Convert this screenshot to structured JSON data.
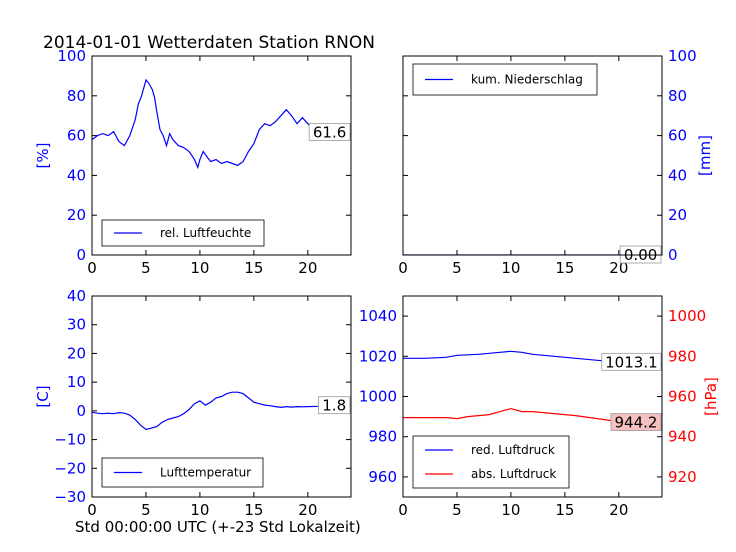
{
  "title": "2014-01-01 Wetterdaten Station RNON",
  "xlabel": "Std 00:00:00 UTC (+-23 Std Lokalzeit)",
  "chart_data": [
    {
      "type": "line",
      "name": "humidity",
      "xlim": [
        0,
        24
      ],
      "xticks": [
        0,
        5,
        10,
        15,
        20
      ],
      "ylim": [
        0,
        100
      ],
      "yticks": [
        0,
        20,
        40,
        60,
        80,
        100
      ],
      "ylabel": "[%]",
      "ylabel_side": "left",
      "ytick_color": "#0000ff",
      "legend": "lower-left",
      "series": [
        {
          "name": "rel. Luftfeuchte",
          "color": "#0000ff",
          "points": [
            [
              0,
              58
            ],
            [
              0.5,
              60
            ],
            [
              1,
              61
            ],
            [
              1.5,
              60
            ],
            [
              2,
              62
            ],
            [
              2.5,
              57
            ],
            [
              3,
              55
            ],
            [
              3.5,
              60
            ],
            [
              4,
              68
            ],
            [
              4.3,
              76
            ],
            [
              4.6,
              80
            ],
            [
              5,
              88
            ],
            [
              5.3,
              86
            ],
            [
              5.6,
              83
            ],
            [
              5.8,
              79
            ],
            [
              6,
              72
            ],
            [
              6.3,
              63
            ],
            [
              6.6,
              60
            ],
            [
              6.9,
              55
            ],
            [
              7.2,
              61
            ],
            [
              7.5,
              58
            ],
            [
              8,
              55
            ],
            [
              8.5,
              54
            ],
            [
              9,
              52
            ],
            [
              9.5,
              48
            ],
            [
              9.8,
              44
            ],
            [
              10,
              48
            ],
            [
              10.3,
              52
            ],
            [
              10.7,
              49
            ],
            [
              11,
              47
            ],
            [
              11.5,
              48
            ],
            [
              12,
              46
            ],
            [
              12.5,
              47
            ],
            [
              13,
              46
            ],
            [
              13.5,
              45
            ],
            [
              14,
              47
            ],
            [
              14.5,
              52
            ],
            [
              15,
              56
            ],
            [
              15.5,
              63
            ],
            [
              16,
              66
            ],
            [
              16.5,
              65
            ],
            [
              17,
              67
            ],
            [
              17.5,
              70
            ],
            [
              18,
              73
            ],
            [
              18.5,
              70
            ],
            [
              19,
              66
            ],
            [
              19.5,
              69
            ],
            [
              20,
              66
            ],
            [
              20.5,
              63
            ],
            [
              21,
              62
            ],
            [
              21.5,
              60
            ],
            [
              22,
              63
            ],
            [
              22.5,
              61
            ],
            [
              23,
              60
            ],
            [
              23.5,
              61
            ],
            [
              24,
              61
            ]
          ]
        }
      ],
      "value_label": "61.6",
      "value_label_y": 61.6
    },
    {
      "type": "line",
      "name": "precipitation",
      "xlim": [
        0,
        24
      ],
      "xticks": [
        0,
        5,
        10,
        15,
        20
      ],
      "ylim": [
        0,
        100
      ],
      "yticks": [
        0,
        20,
        40,
        60,
        80,
        100
      ],
      "ylabel": "[mm]",
      "ylabel_side": "right",
      "ytick_color": "#0000ff",
      "legend": "upper-left",
      "series": [
        {
          "name": "kum. Niederschlag",
          "color": "#0000ff",
          "points": [
            [
              0,
              0
            ],
            [
              24,
              0
            ]
          ]
        }
      ],
      "value_label": "0.00",
      "value_label_y": 0
    },
    {
      "type": "line",
      "name": "temperature",
      "xlim": [
        0,
        24
      ],
      "xticks": [
        0,
        5,
        10,
        15,
        20
      ],
      "ylim": [
        -30,
        40
      ],
      "yticks": [
        -30,
        -20,
        -10,
        0,
        10,
        20,
        30,
        40
      ],
      "ytick_labels": [
        "−30",
        "−20",
        "−10",
        "0",
        "10",
        "20",
        "30",
        "40"
      ],
      "ylabel": "[C]",
      "ylabel_side": "left",
      "ytick_color": "#0000ff",
      "legend": "lower-left",
      "series": [
        {
          "name": "Lufttemperatur",
          "color": "#0000ff",
          "points": [
            [
              0,
              -0.5
            ],
            [
              0.5,
              -0.8
            ],
            [
              1,
              -1
            ],
            [
              1.5,
              -0.8
            ],
            [
              2,
              -1
            ],
            [
              2.5,
              -0.6
            ],
            [
              3,
              -0.8
            ],
            [
              3.5,
              -1.5
            ],
            [
              4,
              -3
            ],
            [
              4.5,
              -5
            ],
            [
              5,
              -6.5
            ],
            [
              5.5,
              -6
            ],
            [
              6,
              -5.5
            ],
            [
              6.5,
              -4
            ],
            [
              7,
              -3
            ],
            [
              7.5,
              -2.5
            ],
            [
              8,
              -2
            ],
            [
              8.5,
              -1
            ],
            [
              9,
              0.5
            ],
            [
              9.5,
              2.5
            ],
            [
              10,
              3.5
            ],
            [
              10.5,
              2
            ],
            [
              11,
              3
            ],
            [
              11.5,
              4.5
            ],
            [
              12,
              5
            ],
            [
              12.5,
              6
            ],
            [
              13,
              6.5
            ],
            [
              13.5,
              6.5
            ],
            [
              14,
              6
            ],
            [
              14.5,
              4.5
            ],
            [
              15,
              3
            ],
            [
              15.5,
              2.5
            ],
            [
              16,
              2
            ],
            [
              16.5,
              1.8
            ],
            [
              17,
              1.5
            ],
            [
              17.5,
              1.2
            ],
            [
              18,
              1.5
            ],
            [
              18.5,
              1.3
            ],
            [
              19,
              1.5
            ],
            [
              19.5,
              1.4
            ],
            [
              20,
              1.5
            ],
            [
              21,
              1.6
            ],
            [
              22,
              1.8
            ],
            [
              23,
              1.7
            ],
            [
              24,
              1.8
            ]
          ]
        }
      ],
      "value_label": "1.8",
      "value_label_y": 1.8
    },
    {
      "type": "line",
      "name": "pressure",
      "xlim": [
        0,
        24
      ],
      "xticks": [
        0,
        5,
        10,
        15,
        20
      ],
      "ylim": [
        950,
        1050
      ],
      "yticks": [
        960,
        980,
        1000,
        1020,
        1040
      ],
      "ytick_color": "#0000ff",
      "y2lim": [
        910,
        1010
      ],
      "y2ticks": [
        920,
        940,
        960,
        980,
        1000
      ],
      "y2tick_color": "#ff0000",
      "y2label": "[hPa]",
      "legend": "lower-left",
      "series": [
        {
          "name": "red. Luftdruck",
          "color": "#0000ff",
          "axis": "left",
          "points": [
            [
              0,
              1019
            ],
            [
              2,
              1019
            ],
            [
              4,
              1019.5
            ],
            [
              5,
              1020.5
            ],
            [
              7,
              1021
            ],
            [
              9,
              1022
            ],
            [
              10,
              1022.5
            ],
            [
              11,
              1022
            ],
            [
              12,
              1021
            ],
            [
              14,
              1020
            ],
            [
              16,
              1019
            ],
            [
              18,
              1018
            ],
            [
              20,
              1017
            ],
            [
              22,
              1016
            ],
            [
              24,
              1015.5
            ]
          ]
        },
        {
          "name": "abs. Luftdruck",
          "color": "#ff0000",
          "axis": "right",
          "points": [
            [
              0,
              949.5
            ],
            [
              2,
              949.5
            ],
            [
              4,
              949.5
            ],
            [
              5,
              949
            ],
            [
              6,
              950
            ],
            [
              7,
              950.5
            ],
            [
              8,
              951
            ],
            [
              9,
              952.5
            ],
            [
              10,
              954
            ],
            [
              11,
              952.5
            ],
            [
              12,
              952.5
            ],
            [
              13,
              952
            ],
            [
              14,
              951.5
            ],
            [
              16,
              950.5
            ],
            [
              18,
              949
            ],
            [
              20,
              947.5
            ],
            [
              22,
              946.5
            ],
            [
              24,
              945
            ]
          ]
        }
      ],
      "value_labels": [
        {
          "text": "1013.1",
          "axis": "left",
          "y": 1017,
          "bg": "#ffffff"
        },
        {
          "text": "944.2",
          "axis": "right",
          "y": 947,
          "bg": "#f4c0c0"
        }
      ]
    }
  ]
}
